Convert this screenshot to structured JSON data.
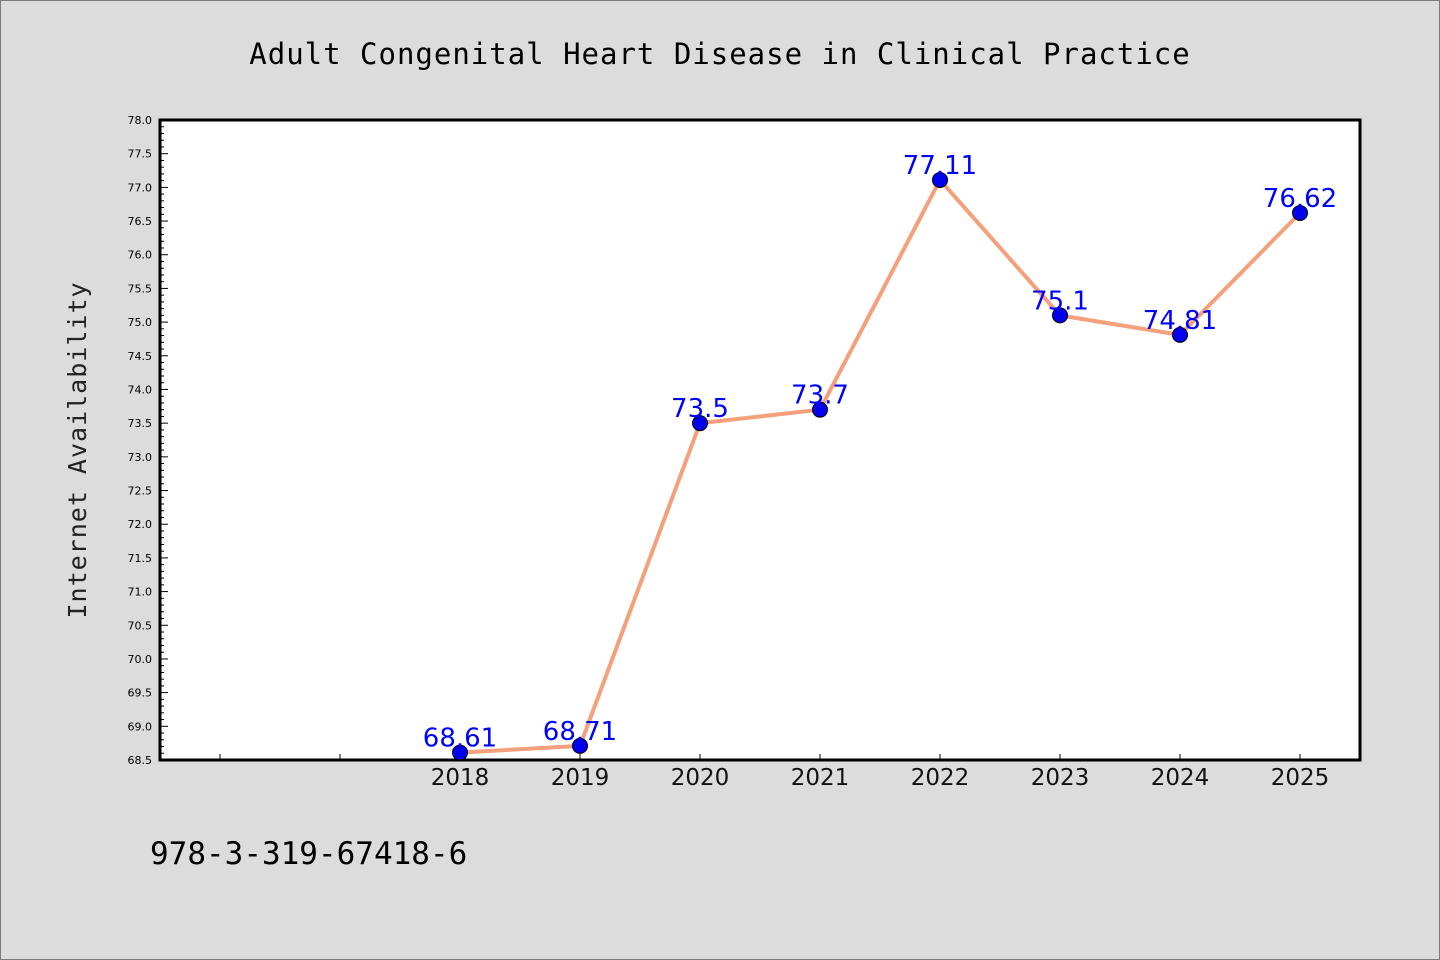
{
  "chart_data": {
    "type": "line",
    "title": "Adult Congenital Heart Disease in Clinical Practice",
    "xlabel": "",
    "ylabel": "Internet Availability",
    "categories": [
      "2018",
      "2019",
      "2020",
      "2021",
      "2022",
      "2023",
      "2024",
      "2025"
    ],
    "values": [
      68.61,
      68.71,
      73.5,
      73.7,
      77.11,
      75.1,
      74.81,
      76.62
    ],
    "data_labels": [
      "68.61",
      "68.71",
      "73.5",
      "73.7",
      "77.11",
      "75.1",
      "74.81",
      "76.62"
    ],
    "ylim": [
      68.5,
      78.0
    ],
    "yticks": [
      "68.5",
      "69.0",
      "69.5",
      "70.0",
      "70.5",
      "71.0",
      "71.5",
      "72.0",
      "72.5",
      "73.0",
      "73.5",
      "74.0",
      "74.5",
      "75.0",
      "75.5",
      "76.0",
      "76.5",
      "77.0",
      "77.5",
      "78.0"
    ],
    "grid": false,
    "line_color": "#f4a07c",
    "marker_color": "#0000ee",
    "label_color": "#0000ff"
  },
  "footer": {
    "isbn": "978-3-319-67418-6"
  }
}
